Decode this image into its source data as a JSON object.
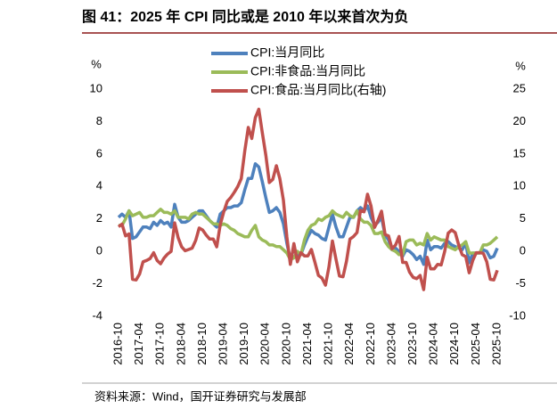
{
  "chart_data": {
    "type": "line",
    "title": "图 41：2025 年 CPI 同比或是 2010 年以来首次为负",
    "source": "资料来源：Wind，国开证券研究与发展部",
    "y_unit": "%",
    "y2_unit": "%",
    "categories": [
      "2016-10",
      null,
      null,
      null,
      null,
      null,
      "2017-04",
      null,
      null,
      null,
      null,
      null,
      "2017-10",
      null,
      null,
      null,
      null,
      null,
      "2018-04",
      null,
      null,
      null,
      null,
      null,
      "2018-10",
      null,
      null,
      null,
      null,
      null,
      "2019-04",
      null,
      null,
      null,
      null,
      null,
      "2019-10",
      null,
      null,
      null,
      null,
      null,
      "2020-04",
      null,
      null,
      null,
      null,
      null,
      "2020-10",
      null,
      null,
      null,
      null,
      null,
      "2021-04",
      null,
      null,
      null,
      null,
      null,
      "2021-10",
      null,
      null,
      null,
      null,
      null,
      "2022-04",
      null,
      null,
      null,
      null,
      null,
      "2022-10",
      null,
      null,
      null,
      null,
      null,
      "2023-04",
      null,
      null,
      null,
      null,
      null,
      "2023-10",
      null,
      null,
      null,
      null,
      null,
      "2024-04",
      null,
      null,
      null,
      null,
      null,
      "2024-10",
      null,
      null,
      null,
      null,
      null,
      "2025-04",
      null,
      null,
      null,
      null,
      null,
      "2025-10"
    ],
    "series": [
      {
        "name": "CPI:当月同比",
        "color": "#4e81bd",
        "values": [
          2.1,
          2.3,
          2.1,
          2.5,
          0.8,
          0.9,
          1.2,
          1.5,
          1.5,
          1.4,
          1.8,
          1.6,
          1.9,
          1.7,
          1.8,
          1.5,
          2.9,
          2.1,
          1.8,
          1.8,
          1.9,
          2.1,
          2.3,
          2.5,
          2.5,
          2.2,
          1.9,
          1.7,
          1.5,
          2.3,
          2.5,
          2.7,
          2.7,
          2.8,
          2.8,
          3.0,
          3.8,
          4.5,
          4.5,
          5.4,
          5.2,
          4.3,
          3.3,
          2.4,
          2.5,
          2.7,
          2.4,
          1.7,
          0.5,
          -0.5,
          0.2,
          -0.3,
          -0.2,
          0.4,
          0.9,
          1.3,
          1.1,
          1.0,
          0.8,
          0.7,
          1.5,
          2.3,
          1.5,
          0.9,
          0.9,
          1.5,
          2.1,
          2.1,
          2.5,
          2.7,
          2.5,
          2.8,
          2.1,
          1.6,
          1.8,
          2.1,
          1.0,
          0.7,
          0.1,
          0.2,
          0.0,
          -0.3,
          0.1,
          0.0,
          -0.2,
          -0.5,
          -0.3,
          -0.8,
          0.7,
          0.1,
          0.3,
          0.3,
          0.2,
          0.5,
          0.6,
          0.4,
          0.3,
          0.2,
          0.1,
          0.5,
          -0.7,
          -0.1,
          -0.1,
          -0.1,
          0.1,
          0.0,
          -0.4,
          -0.3,
          0.2
        ]
      },
      {
        "name": "CPI:非食品:当月同比",
        "color": "#9bbb59",
        "values": [
          1.6,
          1.6,
          2.0,
          2.5,
          2.2,
          2.3,
          2.4,
          2.1,
          2.1,
          2.2,
          2.2,
          2.4,
          2.6,
          2.4,
          2.4,
          2.3,
          2.5,
          2.1,
          2.1,
          2.1,
          2.0,
          2.3,
          2.4,
          2.3,
          2.3,
          2.1,
          1.9,
          1.7,
          1.7,
          1.6,
          1.7,
          1.6,
          1.4,
          1.3,
          1.1,
          1.0,
          0.9,
          0.9,
          1.3,
          1.6,
          0.9,
          0.7,
          0.6,
          0.4,
          0.4,
          0.3,
          0.3,
          0.1,
          -0.1,
          -0.5,
          -0.4,
          0.0,
          -0.2,
          0.7,
          1.3,
          1.6,
          1.7,
          2.0,
          1.9,
          2.1,
          2.2,
          2.5,
          2.3,
          2.2,
          2.1,
          2.4,
          2.2,
          2.1,
          2.5,
          2.0,
          1.8,
          1.8,
          1.6,
          1.1,
          1.1,
          1.2,
          0.6,
          0.3,
          0.1,
          0.0,
          -0.2,
          -0.2,
          0.6,
          0.7,
          0.7,
          0.4,
          0.5,
          0.4,
          1.1,
          0.7,
          0.9,
          0.8,
          0.7,
          0.7,
          0.3,
          0.2,
          0.1,
          0.3,
          0.4,
          0.6,
          -0.1,
          -0.1,
          -0.1,
          -0.1,
          0.4,
          0.4,
          0.5,
          0.7,
          0.9
        ]
      },
      {
        "name": "CPI:食品:当月同比(右轴)",
        "color": "#c0504d",
        "axis": "y2",
        "values": [
          3.8,
          4.2,
          2.4,
          2.7,
          -4.3,
          -4.4,
          -3.5,
          -1.6,
          -1.4,
          -1.1,
          -0.2,
          -1.4,
          -1.9,
          -1.0,
          -0.4,
          0.0,
          4.4,
          2.1,
          0.7,
          0.1,
          0.3,
          0.5,
          1.7,
          3.6,
          3.3,
          2.5,
          1.9,
          1.9,
          0.7,
          4.1,
          6.1,
          7.7,
          8.3,
          9.1,
          10.0,
          11.2,
          15.5,
          19.1,
          17.4,
          20.6,
          21.9,
          18.3,
          14.8,
          10.6,
          11.1,
          13.2,
          11.2,
          7.9,
          2.2,
          -2.0,
          1.2,
          -1.6,
          -0.2,
          -0.7,
          -0.7,
          0.3,
          -1.7,
          -3.7,
          -4.1,
          -5.2,
          -2.4,
          1.6,
          -1.2,
          -3.8,
          -3.9,
          -1.5,
          1.9,
          2.3,
          2.9,
          6.3,
          6.1,
          8.8,
          7.0,
          3.7,
          4.8,
          6.2,
          2.6,
          2.4,
          0.4,
          1.0,
          2.3,
          -1.7,
          -1.7,
          -3.2,
          -4.0,
          -4.2,
          -3.7,
          -5.9,
          -0.9,
          -2.7,
          -2.7,
          -2.0,
          -2.1,
          0.0,
          2.8,
          3.3,
          2.9,
          1.0,
          -0.5,
          -0.8,
          -3.3,
          -1.4,
          -0.2,
          -0.2,
          -0.3,
          -1.6,
          -4.3,
          -4.4,
          -2.9
        ]
      }
    ],
    "ylim": [
      -4,
      10
    ],
    "yticks": [
      -4,
      -2,
      0,
      2,
      4,
      6,
      8,
      10
    ],
    "y2lim": [
      -10,
      25
    ],
    "y2ticks": [
      -10,
      -5,
      0,
      5,
      10,
      15,
      20,
      25
    ]
  }
}
